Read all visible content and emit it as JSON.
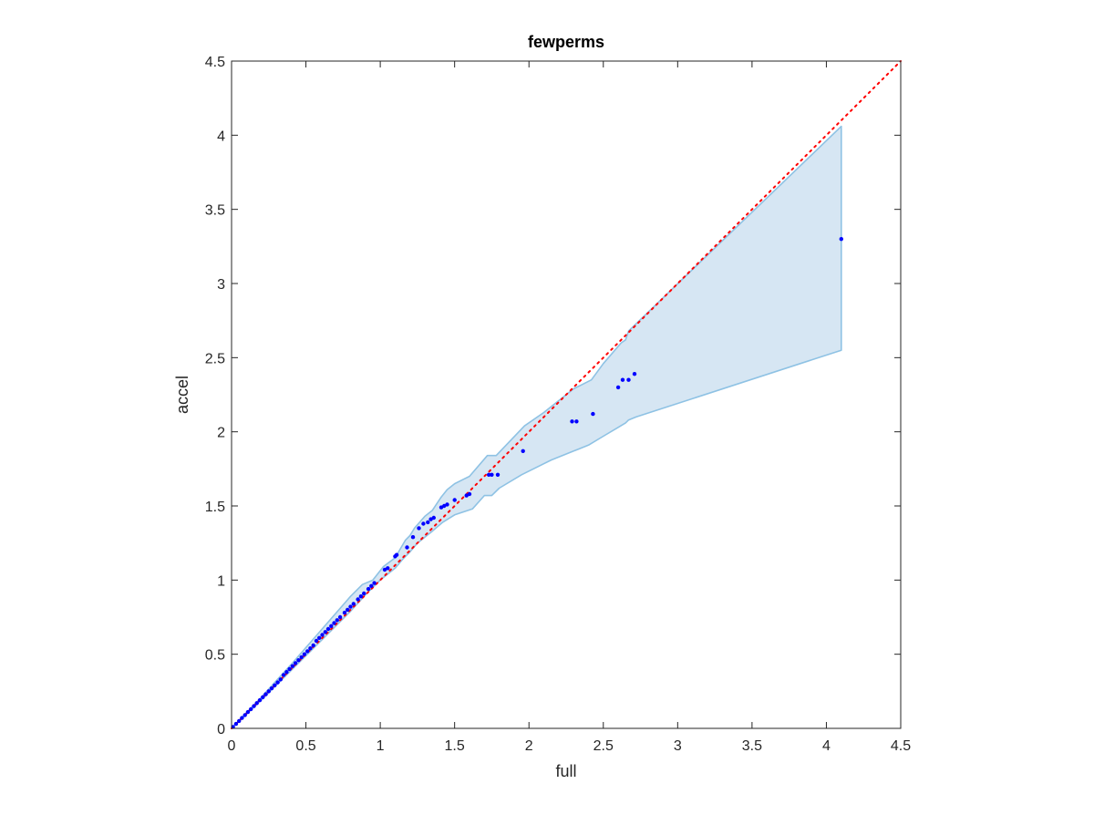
{
  "chart_data": {
    "type": "scatter",
    "title": "fewperms",
    "xlabel": "full",
    "ylabel": "accel",
    "xlim": [
      0,
      4.5
    ],
    "ylim": [
      0,
      4.5
    ],
    "xticks": [
      0,
      0.5,
      1,
      1.5,
      2,
      2.5,
      3,
      3.5,
      4,
      4.5
    ],
    "yticks": [
      0,
      0.5,
      1,
      1.5,
      2,
      2.5,
      3,
      3.5,
      4,
      4.5
    ],
    "xtick_labels": [
      "0",
      "0.5",
      "1",
      "1.5",
      "2",
      "2.5",
      "3",
      "3.5",
      "4",
      "4.5"
    ],
    "ytick_labels": [
      "0",
      "0.5",
      "1",
      "1.5",
      "2",
      "2.5",
      "3",
      "3.5",
      "4",
      "4.5"
    ],
    "grid": false,
    "colors": {
      "points": "#0000ff",
      "band_fill": "#d6e6f3",
      "band_edge": "#8ec2e4",
      "reference_line": "#ff0000",
      "axes": "#262626"
    },
    "reference_line": {
      "style": "dotted",
      "from": [
        0,
        0
      ],
      "to": [
        4.5,
        4.5
      ]
    },
    "band": {
      "upper": [
        [
          0,
          0
        ],
        [
          0.2,
          0.21
        ],
        [
          0.4,
          0.43
        ],
        [
          0.6,
          0.66
        ],
        [
          0.8,
          0.89
        ],
        [
          0.88,
          0.97
        ],
        [
          0.95,
          1.0
        ],
        [
          1.02,
          1.09
        ],
        [
          1.1,
          1.15
        ],
        [
          1.17,
          1.27
        ],
        [
          1.2,
          1.3
        ],
        [
          1.23,
          1.35
        ],
        [
          1.3,
          1.43
        ],
        [
          1.35,
          1.47
        ],
        [
          1.41,
          1.56
        ],
        [
          1.45,
          1.61
        ],
        [
          1.5,
          1.65
        ],
        [
          1.56,
          1.68
        ],
        [
          1.6,
          1.7
        ],
        [
          1.72,
          1.84
        ],
        [
          1.78,
          1.84
        ],
        [
          1.97,
          2.04
        ],
        [
          2.1,
          2.13
        ],
        [
          2.3,
          2.29
        ],
        [
          2.42,
          2.35
        ],
        [
          2.5,
          2.46
        ],
        [
          2.62,
          2.6
        ],
        [
          2.65,
          2.62
        ],
        [
          2.67,
          2.68
        ],
        [
          4.1,
          4.06
        ]
      ],
      "lower": [
        [
          4.1,
          2.55
        ],
        [
          2.72,
          2.1
        ],
        [
          2.67,
          2.08
        ],
        [
          2.65,
          2.06
        ],
        [
          2.6,
          2.03
        ],
        [
          2.5,
          1.97
        ],
        [
          2.4,
          1.91
        ],
        [
          2.3,
          1.87
        ],
        [
          2.15,
          1.81
        ],
        [
          1.95,
          1.71
        ],
        [
          1.8,
          1.62
        ],
        [
          1.75,
          1.57
        ],
        [
          1.7,
          1.57
        ],
        [
          1.62,
          1.48
        ],
        [
          1.56,
          1.46
        ],
        [
          1.5,
          1.44
        ],
        [
          1.42,
          1.39
        ],
        [
          1.35,
          1.33
        ],
        [
          1.3,
          1.29
        ],
        [
          1.25,
          1.25
        ],
        [
          1.2,
          1.19
        ],
        [
          1.15,
          1.14
        ],
        [
          1.1,
          1.08
        ],
        [
          1.0,
          1.0
        ],
        [
          0.9,
          0.9
        ],
        [
          0.8,
          0.79
        ],
        [
          0.6,
          0.59
        ],
        [
          0.4,
          0.39
        ],
        [
          0.2,
          0.19
        ],
        [
          0,
          0
        ]
      ]
    },
    "points": [
      [
        0.01,
        0.01
      ],
      [
        0.03,
        0.03
      ],
      [
        0.05,
        0.05
      ],
      [
        0.07,
        0.07
      ],
      [
        0.09,
        0.09
      ],
      [
        0.11,
        0.11
      ],
      [
        0.13,
        0.13
      ],
      [
        0.15,
        0.15
      ],
      [
        0.17,
        0.17
      ],
      [
        0.19,
        0.19
      ],
      [
        0.21,
        0.21
      ],
      [
        0.23,
        0.23
      ],
      [
        0.25,
        0.25
      ],
      [
        0.27,
        0.27
      ],
      [
        0.29,
        0.29
      ],
      [
        0.31,
        0.31
      ],
      [
        0.33,
        0.33
      ],
      [
        0.35,
        0.36
      ],
      [
        0.37,
        0.38
      ],
      [
        0.39,
        0.4
      ],
      [
        0.41,
        0.42
      ],
      [
        0.43,
        0.44
      ],
      [
        0.45,
        0.46
      ],
      [
        0.47,
        0.48
      ],
      [
        0.49,
        0.5
      ],
      [
        0.51,
        0.52
      ],
      [
        0.53,
        0.54
      ],
      [
        0.55,
        0.56
      ],
      [
        0.57,
        0.59
      ],
      [
        0.59,
        0.61
      ],
      [
        0.61,
        0.63
      ],
      [
        0.63,
        0.65
      ],
      [
        0.65,
        0.67
      ],
      [
        0.67,
        0.69
      ],
      [
        0.69,
        0.71
      ],
      [
        0.71,
        0.73
      ],
      [
        0.73,
        0.75
      ],
      [
        0.76,
        0.78
      ],
      [
        0.78,
        0.8
      ],
      [
        0.8,
        0.82
      ],
      [
        0.82,
        0.84
      ],
      [
        0.85,
        0.87
      ],
      [
        0.87,
        0.89
      ],
      [
        0.89,
        0.91
      ],
      [
        0.92,
        0.94
      ],
      [
        0.94,
        0.96
      ],
      [
        0.96,
        0.98
      ],
      [
        1.03,
        1.07
      ],
      [
        1.05,
        1.08
      ],
      [
        1.1,
        1.16
      ],
      [
        1.11,
        1.17
      ],
      [
        1.18,
        1.22
      ],
      [
        1.22,
        1.29
      ],
      [
        1.26,
        1.35
      ],
      [
        1.29,
        1.38
      ],
      [
        1.32,
        1.39
      ],
      [
        1.34,
        1.41
      ],
      [
        1.36,
        1.42
      ],
      [
        1.41,
        1.49
      ],
      [
        1.43,
        1.5
      ],
      [
        1.45,
        1.51
      ],
      [
        1.5,
        1.54
      ],
      [
        1.58,
        1.57
      ],
      [
        1.6,
        1.58
      ],
      [
        1.73,
        1.71
      ],
      [
        1.75,
        1.71
      ],
      [
        1.79,
        1.71
      ],
      [
        1.96,
        1.87
      ],
      [
        2.29,
        2.07
      ],
      [
        2.32,
        2.07
      ],
      [
        2.43,
        2.12
      ],
      [
        2.6,
        2.3
      ],
      [
        2.63,
        2.35
      ],
      [
        2.67,
        2.35
      ],
      [
        2.71,
        2.39
      ],
      [
        4.1,
        3.3
      ]
    ]
  }
}
